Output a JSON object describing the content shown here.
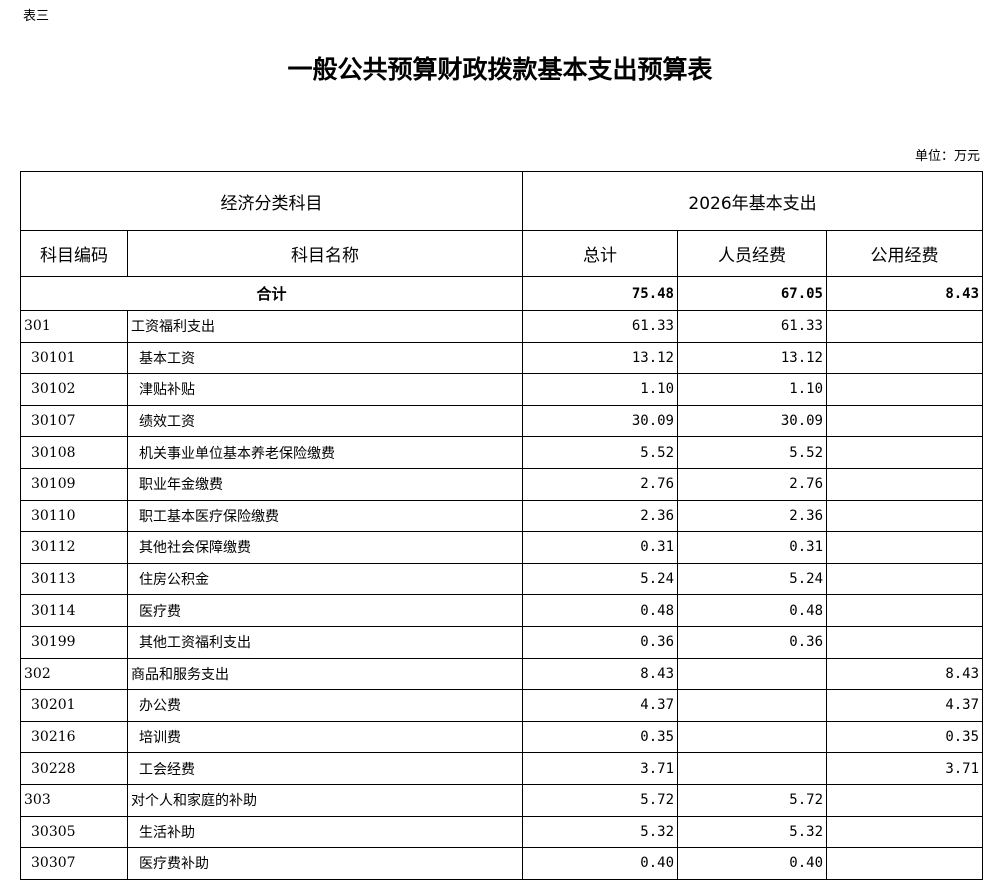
{
  "note": "表三",
  "title": "一般公共预算财政拨款基本支出预算表",
  "unit": "单位：万元",
  "headers": {
    "econ_class": "经济分类科目",
    "year_expense": "2026年基本支出",
    "code": "科目编码",
    "name": "科目名称",
    "total": "总计",
    "personnel": "人员经费",
    "public": "公用经费"
  },
  "total_row": {
    "label": "合计",
    "total": "75.48",
    "personnel": "67.05",
    "public": "8.43"
  },
  "rows": [
    {
      "code": "301",
      "name": "工资福利支出",
      "total": "61.33",
      "personnel": "61.33",
      "public": "",
      "level": 1
    },
    {
      "code": "30101",
      "name": "基本工资",
      "total": "13.12",
      "personnel": "13.12",
      "public": "",
      "level": 2
    },
    {
      "code": "30102",
      "name": "津贴补贴",
      "total": "1.10",
      "personnel": "1.10",
      "public": "",
      "level": 2
    },
    {
      "code": "30107",
      "name": "绩效工资",
      "total": "30.09",
      "personnel": "30.09",
      "public": "",
      "level": 2
    },
    {
      "code": "30108",
      "name": "机关事业单位基本养老保险缴费",
      "total": "5.52",
      "personnel": "5.52",
      "public": "",
      "level": 2
    },
    {
      "code": "30109",
      "name": "职业年金缴费",
      "total": "2.76",
      "personnel": "2.76",
      "public": "",
      "level": 2
    },
    {
      "code": "30110",
      "name": "职工基本医疗保险缴费",
      "total": "2.36",
      "personnel": "2.36",
      "public": "",
      "level": 2
    },
    {
      "code": "30112",
      "name": "其他社会保障缴费",
      "total": "0.31",
      "personnel": "0.31",
      "public": "",
      "level": 2
    },
    {
      "code": "30113",
      "name": "住房公积金",
      "total": "5.24",
      "personnel": "5.24",
      "public": "",
      "level": 2
    },
    {
      "code": "30114",
      "name": "医疗费",
      "total": "0.48",
      "personnel": "0.48",
      "public": "",
      "level": 2
    },
    {
      "code": "30199",
      "name": "其他工资福利支出",
      "total": "0.36",
      "personnel": "0.36",
      "public": "",
      "level": 2
    },
    {
      "code": "302",
      "name": "商品和服务支出",
      "total": "8.43",
      "personnel": "",
      "public": "8.43",
      "level": 1
    },
    {
      "code": "30201",
      "name": "办公费",
      "total": "4.37",
      "personnel": "",
      "public": "4.37",
      "level": 2
    },
    {
      "code": "30216",
      "name": "培训费",
      "total": "0.35",
      "personnel": "",
      "public": "0.35",
      "level": 2
    },
    {
      "code": "30228",
      "name": "工会经费",
      "total": "3.71",
      "personnel": "",
      "public": "3.71",
      "level": 2
    },
    {
      "code": "303",
      "name": "对个人和家庭的补助",
      "total": "5.72",
      "personnel": "5.72",
      "public": "",
      "level": 1
    },
    {
      "code": "30305",
      "name": "生活补助",
      "total": "5.32",
      "personnel": "5.32",
      "public": "",
      "level": 2
    },
    {
      "code": "30307",
      "name": "医疗费补助",
      "total": "0.40",
      "personnel": "0.40",
      "public": "",
      "level": 2
    }
  ]
}
